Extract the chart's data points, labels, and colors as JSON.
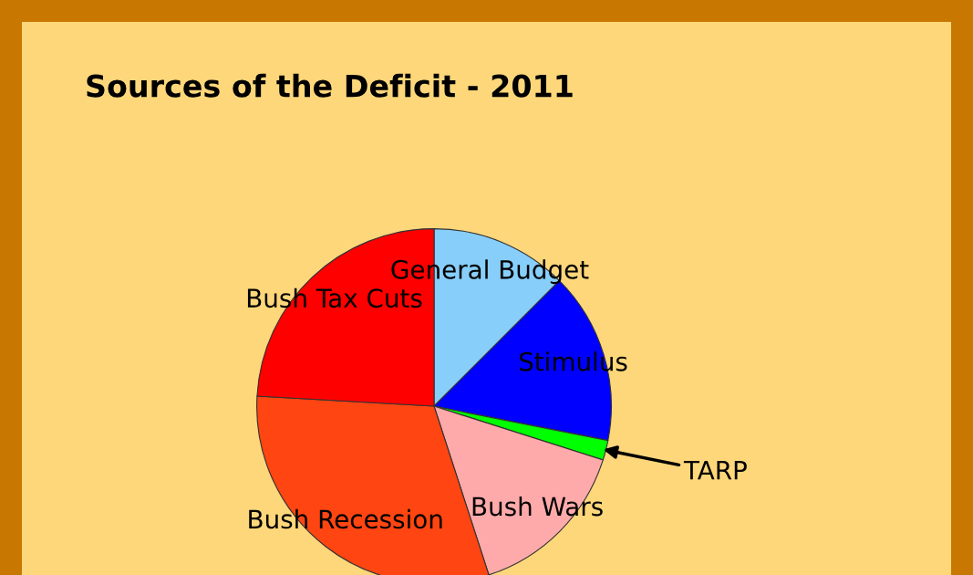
{
  "chart_data": {
    "type": "pie",
    "title": "Sources of the Deficit - 2011",
    "categories": [
      "General Budget",
      "Stimulus",
      "TARP",
      "Bush Wars",
      "Bush Recession",
      "Bush Tax Cuts"
    ],
    "values": [
      12.5,
      15.6,
      1.8,
      15.1,
      30.9,
      24.1
    ],
    "colors": [
      "#87cefa",
      "#0000ff",
      "#00ff00",
      "#ffaaaa",
      "#ff4511",
      "#ff0000"
    ]
  }
}
